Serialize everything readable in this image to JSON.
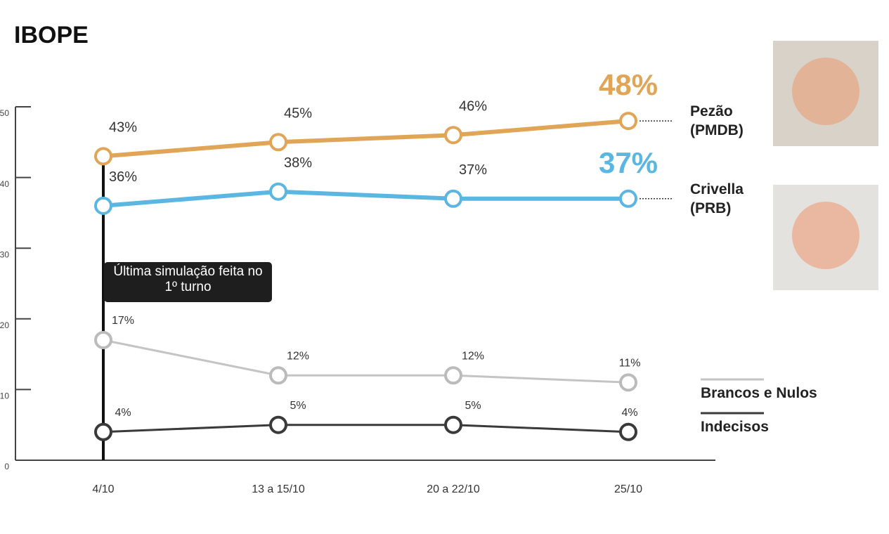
{
  "chart_data": {
    "type": "line",
    "title": "IBOPE",
    "categories": [
      "4/10",
      "13 a 15/10",
      "20 a 22/10",
      "25/10"
    ],
    "series": [
      {
        "name": "Pezão (PMDB)",
        "color": "#e0a556",
        "values": [
          43,
          45,
          46,
          48
        ],
        "value_labels": [
          "43%",
          "45%",
          "46%",
          "48%"
        ]
      },
      {
        "name": "Crivella (PRB)",
        "color": "#5cb6e2",
        "values": [
          36,
          38,
          37,
          37
        ],
        "value_labels": [
          "36%",
          "38%",
          "37%",
          "37%"
        ]
      },
      {
        "name": "Brancos e Nulos",
        "color": "#c4c4c4",
        "values": [
          17,
          12,
          12,
          11
        ],
        "value_labels": [
          "17%",
          "12%",
          "12%",
          "11%"
        ]
      },
      {
        "name": "Indecisos",
        "color": "#3a3a3a",
        "values": [
          4,
          5,
          5,
          4
        ],
        "value_labels": [
          "4%",
          "5%",
          "5%",
          "4%"
        ]
      }
    ],
    "ylim": [
      0,
      50
    ],
    "yticks": [
      0,
      10,
      20,
      30,
      40,
      50
    ],
    "annotation": "Última simulação feita no 1º turno"
  }
}
